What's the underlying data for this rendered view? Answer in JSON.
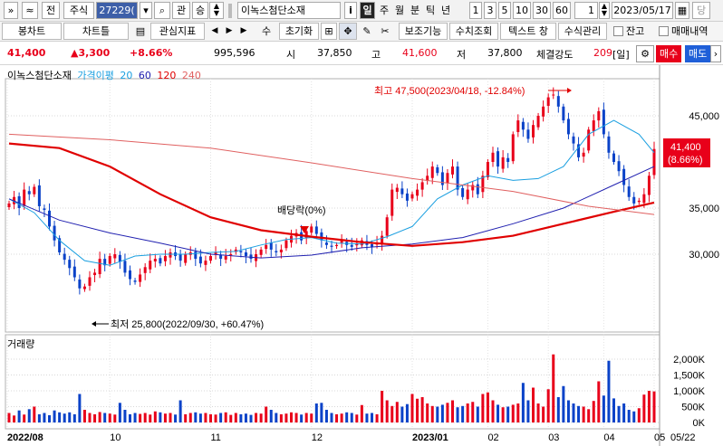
{
  "toolbar1": {
    "expand_btn": "»",
    "up_btn": "≈",
    "all_btn": "전",
    "type": "주식",
    "code": "27229(",
    "dropdown_glyph": "▾",
    "search_glyph": "⌕",
    "rel_btn": "관",
    "spin_label": "승",
    "name": "이녹스첨단소재",
    "info_btn": "i",
    "periods": [
      "일",
      "주",
      "월",
      "분",
      "틱",
      "년"
    ],
    "intervals": [
      "1",
      "3",
      "5",
      "10",
      "30",
      "60"
    ],
    "count": "1",
    "date": "2023/05/17",
    "date_btn": "▦",
    "extra_btn": "당"
  },
  "toolbar2": {
    "bong_chart": "봉차트",
    "chart_list": "차트틀",
    "indicator": "관심지표",
    "prev": "◀",
    "next": "▶",
    "su": "수",
    "reset": "초기화",
    "boost": "보조기능",
    "num_search": "수치조회",
    "text_wnd": "텍스트 창",
    "edit_func": "수식관리",
    "balance": "잔고",
    "trade_hist": "매매내역"
  },
  "pricebar": {
    "price": "41,400",
    "change": "▲3,300",
    "pct": "+8.66%",
    "volume": "995,596",
    "open_label": "시",
    "open": "37,850",
    "high_label": "고",
    "high": "41,600",
    "low_label": "저",
    "low": "37,800",
    "strength_label": "체결강도",
    "strength": "209",
    "strength_unit": "[일]",
    "buy": "매수",
    "sell": "매도"
  },
  "legend": {
    "name": "이녹스첨단소재",
    "ma_label": "가격이평",
    "ma_periods": [
      "20",
      "60",
      "120",
      "240"
    ],
    "colors": [
      "#1a9fe0",
      "#2020b0",
      "#e00000",
      "#e06060"
    ]
  },
  "annotations": {
    "high": "최고 47,500(2023/04/18, -12.84%)",
    "low": "최저 25,800(2022/09/30, +60.47%)",
    "dividend": "배당락(0%)"
  },
  "price_label": {
    "value": "41,400",
    "pct": "(8.66%)"
  },
  "volume_label": "거래량",
  "chart_data": {
    "type": "line",
    "price_axis": [
      "45,000",
      "35,000",
      "30,000"
    ],
    "price_axis_values": [
      45000,
      35000,
      30000
    ],
    "volume_axis": [
      "2,000K",
      "1,500K",
      "1,000K",
      "500K",
      "0K"
    ],
    "volume_axis_values": [
      2000,
      1500,
      1000,
      500,
      0
    ],
    "x_labels": [
      "2022/08",
      "10",
      "11",
      "12",
      "2023/01",
      "02",
      "03",
      "04",
      "05"
    ],
    "x_right_label": "05/22",
    "ma_lines": [
      {
        "period": "20",
        "color": "#1a9fe0",
        "points": [
          [
            0,
            36000
          ],
          [
            5,
            34500
          ],
          [
            10,
            31500
          ],
          [
            15,
            29300
          ],
          [
            20,
            28800
          ],
          [
            25,
            29800
          ],
          [
            30,
            30000
          ],
          [
            35,
            30000
          ],
          [
            40,
            30200
          ],
          [
            45,
            30300
          ],
          [
            50,
            31000
          ],
          [
            55,
            31600
          ],
          [
            60,
            31800
          ],
          [
            65,
            31200
          ],
          [
            70,
            31100
          ],
          [
            75,
            31900
          ],
          [
            80,
            33000
          ],
          [
            85,
            36000
          ],
          [
            90,
            37500
          ],
          [
            95,
            38500
          ],
          [
            100,
            38000
          ],
          [
            105,
            38200
          ],
          [
            110,
            39500
          ],
          [
            115,
            43000
          ],
          [
            120,
            44500
          ],
          [
            125,
            43000
          ],
          [
            130,
            41000
          ]
        ]
      },
      {
        "period": "60",
        "color": "#2020b0",
        "points": [
          [
            0,
            36000
          ],
          [
            10,
            33700
          ],
          [
            20,
            32300
          ],
          [
            30,
            31200
          ],
          [
            40,
            30000
          ],
          [
            50,
            29600
          ],
          [
            60,
            29900
          ],
          [
            70,
            30700
          ],
          [
            80,
            31100
          ],
          [
            90,
            31800
          ],
          [
            100,
            33300
          ],
          [
            110,
            35000
          ],
          [
            120,
            37500
          ],
          [
            130,
            39500
          ]
        ]
      },
      {
        "period": "120",
        "color": "#e00000",
        "points": [
          [
            0,
            42000
          ],
          [
            10,
            41500
          ],
          [
            20,
            39500
          ],
          [
            30,
            36500
          ],
          [
            40,
            34000
          ],
          [
            50,
            32600
          ],
          [
            60,
            31900
          ],
          [
            70,
            31300
          ],
          [
            80,
            30900
          ],
          [
            90,
            31300
          ],
          [
            100,
            32000
          ],
          [
            110,
            33300
          ],
          [
            120,
            34600
          ],
          [
            130,
            35600
          ]
        ]
      },
      {
        "period": "240",
        "color": "#e06060",
        "points": [
          [
            0,
            43000
          ],
          [
            20,
            42400
          ],
          [
            40,
            41500
          ],
          [
            60,
            39900
          ],
          [
            80,
            38200
          ],
          [
            100,
            36800
          ],
          [
            115,
            35200
          ],
          [
            130,
            34300
          ]
        ]
      }
    ],
    "candles_close": [
      35500,
      36200,
      35000,
      37000,
      36500,
      37300,
      35200,
      34800,
      33000,
      31500,
      30200,
      29400,
      28500,
      27500,
      26300,
      26500,
      27500,
      28000,
      29500,
      28800,
      29800,
      30000,
      29200,
      28000,
      27300,
      27000,
      27800,
      28600,
      29300,
      29500,
      29000,
      29800,
      30200,
      29800,
      29300,
      30000,
      30200,
      29500,
      29000,
      29300,
      29800,
      30200,
      29500,
      29800,
      30000,
      30500,
      30200,
      29800,
      29500,
      30000,
      30500,
      31000,
      30500,
      30200,
      30500,
      31500,
      32000,
      32300,
      31500,
      32500,
      33000,
      32200,
      31500,
      31000,
      30800,
      31000,
      31500,
      31000,
      30800,
      31200,
      31500,
      31000,
      30800,
      31200,
      32000,
      34000,
      37000,
      37200,
      36500,
      35800,
      36500,
      37000,
      37800,
      38500,
      39500,
      38800,
      37500,
      38800,
      39500,
      37000,
      36200,
      37000,
      37500,
      36500,
      38500,
      40000,
      41000,
      39500,
      40500,
      40000,
      43000,
      44500,
      43500,
      42500,
      44000,
      45000,
      46000,
      47000,
      47300,
      46000,
      44500,
      43000,
      42000,
      40500,
      41000,
      43500,
      44500,
      45500,
      43000,
      41000,
      40000,
      39000,
      37500,
      36200,
      35500,
      35800,
      36500,
      38500,
      41400
    ],
    "volume": [
      300,
      220,
      380,
      250,
      420,
      500,
      260,
      300,
      230,
      380,
      320,
      280,
      320,
      260,
      900,
      400,
      300,
      260,
      330,
      300,
      280,
      250,
      620,
      400,
      260,
      300,
      270,
      300,
      250,
      350,
      320,
      280,
      300,
      250,
      700,
      260,
      300,
      320,
      280,
      300,
      260,
      250,
      300,
      320,
      240,
      300,
      260,
      280,
      240,
      300,
      280,
      500,
      400,
      300,
      260,
      280,
      320,
      300,
      250,
      300,
      280,
      600,
      620,
      400,
      300,
      260,
      280,
      320,
      300,
      250,
      550,
      280,
      300,
      260,
      1000,
      700,
      520,
      650,
      500,
      580,
      900,
      750,
      800,
      600,
      520,
      500,
      560,
      620,
      700,
      480,
      520,
      600,
      650,
      500,
      900,
      950,
      700,
      560,
      480,
      500,
      560,
      600,
      1250,
      700,
      1100,
      600,
      500,
      1050,
      2150,
      800,
      1150,
      700,
      600,
      520,
      500,
      420,
      680,
      1300,
      850,
      1950,
      760,
      520,
      600,
      400,
      350,
      450,
      880,
      1000,
      980
    ]
  }
}
